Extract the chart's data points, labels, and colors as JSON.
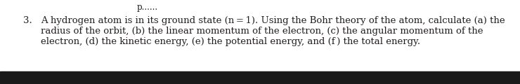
{
  "number": "3.",
  "line1": "A hydrogen atom is in its ground state (n = 1). Using the Bohr theory of the atom, calculate (a) the",
  "line2": "radius of the orbit, (b) the linear momentum of the electron, (c) the angular momentum of the",
  "line3": "electron, (d) the kinetic energy, (e) the potential energy, and (f ) the total energy.",
  "top_text": "p......",
  "bg_color": "#ffffff",
  "text_color": "#231f20",
  "bottom_color": "#1a1a1a",
  "font_size": 9.5,
  "fig_width": 7.4,
  "fig_height": 1.2,
  "dpi": 100
}
